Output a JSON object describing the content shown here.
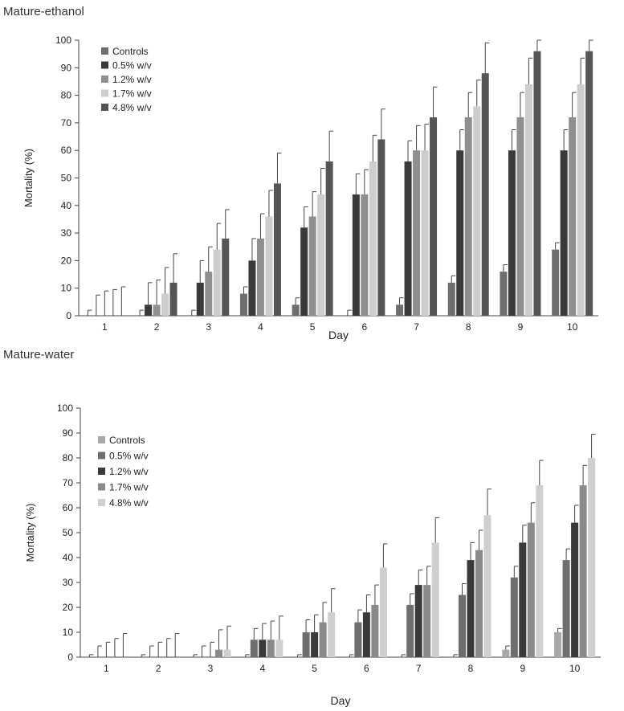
{
  "chart_data": [
    {
      "type": "bar",
      "title": "Mature-ethanol",
      "xlabel": "Day",
      "ylabel": "Mortality (%)",
      "ylim": [
        0,
        100
      ],
      "yticks": [
        0,
        10,
        20,
        30,
        40,
        50,
        60,
        70,
        80,
        90,
        100
      ],
      "categories": [
        "1",
        "2",
        "3",
        "4",
        "5",
        "6",
        "7",
        "8",
        "9",
        "10"
      ],
      "legend_position": "top-left",
      "series": [
        {
          "name": "Controls",
          "color": "#6e6e6e",
          "values": [
            0,
            0,
            0,
            8,
            4,
            0,
            4,
            12,
            16,
            24
          ],
          "errors": [
            2,
            2,
            2,
            2.5,
            2.5,
            2,
            2.5,
            2.5,
            2.5,
            2.5
          ]
        },
        {
          "name": "0.5% w/v",
          "color": "#3a3a3a",
          "values": [
            0,
            4,
            12,
            20,
            32,
            44,
            56,
            60,
            60,
            60
          ],
          "errors": [
            7.5,
            8,
            8,
            8,
            7.5,
            7.5,
            7.5,
            7.5,
            7.5,
            7.5
          ]
        },
        {
          "name": "1.2% w/v",
          "color": "#8f8f8f",
          "values": [
            0,
            4,
            16,
            28,
            36,
            44,
            60,
            72,
            72,
            72
          ],
          "errors": [
            9,
            9,
            9,
            9,
            9,
            9,
            9,
            9,
            9,
            9
          ]
        },
        {
          "name": "1.7% w/v",
          "color": "#cdcdcd",
          "values": [
            0,
            8,
            24,
            36,
            44,
            56,
            60,
            76,
            84,
            84
          ],
          "errors": [
            9.5,
            9.5,
            9.5,
            9.5,
            9.5,
            9.5,
            9.5,
            9.5,
            9.5,
            9.5
          ]
        },
        {
          "name": "4.8% w/v",
          "color": "#555555",
          "values": [
            0,
            12,
            28,
            48,
            56,
            64,
            72,
            88,
            96,
            96
          ],
          "errors": [
            10.5,
            10.5,
            10.5,
            11,
            11,
            11,
            11,
            11,
            4,
            4
          ]
        }
      ]
    },
    {
      "type": "bar",
      "title": "Mature-water",
      "xlabel": "Day",
      "ylabel": "Mortality (%)",
      "ylim": [
        0,
        100
      ],
      "yticks": [
        0,
        10,
        20,
        30,
        40,
        50,
        60,
        70,
        80,
        90,
        100
      ],
      "categories": [
        "1",
        "2",
        "3",
        "4",
        "5",
        "6",
        "7",
        "8",
        "9",
        "10"
      ],
      "legend_position": "top-left",
      "series": [
        {
          "name": "Controls",
          "color": "#a8a8a8",
          "values": [
            0,
            0,
            0,
            0,
            0,
            0,
            0,
            0,
            3,
            10
          ],
          "errors": [
            1,
            1,
            1,
            1,
            1,
            1,
            1,
            1,
            1.5,
            1.5
          ]
        },
        {
          "name": "0.5% w/v",
          "color": "#6e6e6e",
          "values": [
            0,
            0,
            0,
            7,
            10,
            14,
            21,
            25,
            32,
            39
          ],
          "errors": [
            4.5,
            4.5,
            4.5,
            4.5,
            5,
            5,
            4.5,
            4.5,
            4.5,
            4.5
          ]
        },
        {
          "name": "1.2% w/v",
          "color": "#3a3a3a",
          "values": [
            0,
            0,
            0,
            7,
            10,
            18,
            29,
            39,
            46,
            54
          ],
          "errors": [
            6,
            6,
            6,
            6.5,
            7,
            7,
            6,
            7,
            7,
            7
          ]
        },
        {
          "name": "1.7% w/v",
          "color": "#8a8a8a",
          "values": [
            0,
            0,
            3,
            7,
            14,
            21,
            29,
            43,
            54,
            69
          ],
          "errors": [
            7.5,
            7.5,
            8,
            7.5,
            8,
            8,
            7.5,
            8,
            8,
            8
          ]
        },
        {
          "name": "4.8% w/v",
          "color": "#cfcfcf",
          "values": [
            0,
            0,
            3,
            7,
            18,
            36,
            46,
            57,
            69,
            80
          ],
          "errors": [
            9.5,
            9.5,
            9.5,
            9.5,
            9.5,
            9.5,
            10,
            10.5,
            10,
            9.5
          ]
        }
      ]
    }
  ]
}
